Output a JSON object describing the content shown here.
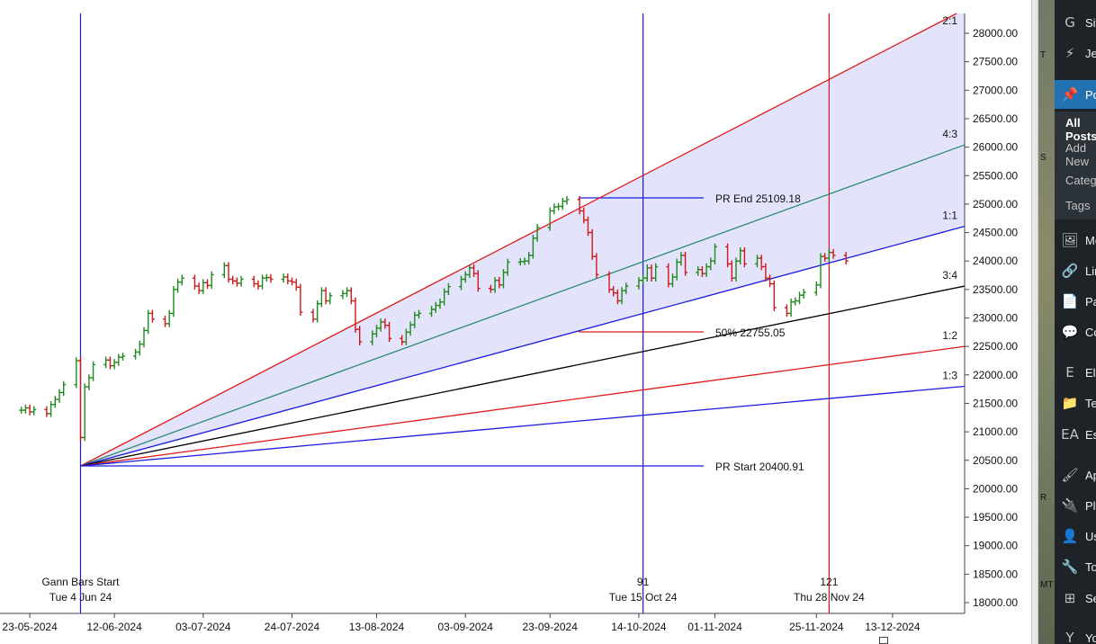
{
  "chart_data": {
    "type": "ohlc-gann-chart",
    "date_axis": {
      "ticks": [
        "23-05-2024",
        "12-06-2024",
        "03-07-2024",
        "24-07-2024",
        "13-08-2024",
        "03-09-2024",
        "23-09-2024",
        "14-10-2024",
        "01-11-2024",
        "25-11-2024",
        "13-12-2024"
      ]
    },
    "price_axis": {
      "ylim": [
        17900,
        28350
      ],
      "ticks": [
        "28000.00",
        "27500.00",
        "27000.00",
        "26500.00",
        "26000.00",
        "25500.00",
        "25000.00",
        "24500.00",
        "24000.00",
        "23500.00",
        "23000.00",
        "22500.00",
        "22000.00",
        "21500.00",
        "21000.00",
        "20500.00",
        "20000.00",
        "19500.00",
        "19000.00",
        "18500.00",
        "18000.00"
      ]
    },
    "gann_fan": {
      "origin_date": "2024-06-04",
      "origin_price": 20400.91,
      "lines": [
        {
          "label": "2:1",
          "color": "#e01818",
          "end_price": 28420
        },
        {
          "label": "4:3",
          "color": "#2e8b6e",
          "end_price": 26040
        },
        {
          "label": "1:1",
          "color": "#1a1ae0",
          "end_price": 24610
        },
        {
          "label": "3:4",
          "color": "#000000",
          "end_price": 23560
        },
        {
          "label": "1:2",
          "color": "#e01818",
          "end_price": 22500
        },
        {
          "label": "1:3",
          "color": "#1a1ae0",
          "end_price": 21800
        }
      ]
    },
    "price_range": {
      "end_label": "PR End 25109.18",
      "start_label": "PR Start 20400.91",
      "mid_label": "50% 22755.05",
      "end_value": 25109.18,
      "start_value": 20400.91,
      "mid_value": 22755.05
    },
    "vertical_markers": [
      {
        "date": "2024-06-04",
        "color": "#1a1ae0",
        "label_top": "Gann Bars Start",
        "label_bottom": "Tue 4 Jun 24"
      },
      {
        "date": "2024-10-15",
        "color": "#1a1ae0",
        "label_top": "91",
        "label_bottom": "Tue 15 Oct 24"
      },
      {
        "date": "2024-11-28",
        "color": "#e01818",
        "label_top": "121",
        "label_bottom": "Thu 28 Nov 24"
      }
    ],
    "up_color": "#1f8a1f",
    "down_color": "#d01818",
    "series": [
      {
        "date": "2024-05-21",
        "close": 21380
      },
      {
        "date": "2024-05-22",
        "close": 21420
      },
      {
        "date": "2024-05-23",
        "close": 21350
      },
      {
        "date": "2024-05-24",
        "close": 21390
      },
      {
        "date": "2024-05-27",
        "close": 21320
      },
      {
        "date": "2024-05-28",
        "close": 21480
      },
      {
        "date": "2024-05-29",
        "close": 21570
      },
      {
        "date": "2024-05-30",
        "close": 21690
      },
      {
        "date": "2024-05-31",
        "close": 21830
      },
      {
        "date": "2024-06-03",
        "close": 22250
      },
      {
        "date": "2024-06-04",
        "close": 20900
      },
      {
        "date": "2024-06-05",
        "close": 21790
      },
      {
        "date": "2024-06-06",
        "close": 21950
      },
      {
        "date": "2024-06-07",
        "close": 22180
      },
      {
        "date": "2024-06-10",
        "close": 22260
      },
      {
        "date": "2024-06-11",
        "close": 22160
      },
      {
        "date": "2024-06-12",
        "close": 22220
      },
      {
        "date": "2024-06-13",
        "close": 22310
      },
      {
        "date": "2024-06-14",
        "close": 22330
      },
      {
        "date": "2024-06-17",
        "close": 22400
      },
      {
        "date": "2024-06-18",
        "close": 22540
      },
      {
        "date": "2024-06-19",
        "close": 22780
      },
      {
        "date": "2024-06-20",
        "close": 23080
      },
      {
        "date": "2024-06-21",
        "close": 22980
      },
      {
        "date": "2024-06-24",
        "close": 22900
      },
      {
        "date": "2024-06-25",
        "close": 23080
      },
      {
        "date": "2024-06-26",
        "close": 23500
      },
      {
        "date": "2024-06-27",
        "close": 23630
      },
      {
        "date": "2024-06-28",
        "close": 23700
      },
      {
        "date": "2024-07-01",
        "close": 23560
      },
      {
        "date": "2024-07-02",
        "close": 23480
      },
      {
        "date": "2024-07-03",
        "close": 23620
      },
      {
        "date": "2024-07-04",
        "close": 23570
      },
      {
        "date": "2024-07-05",
        "close": 23760
      },
      {
        "date": "2024-07-08",
        "close": 23920
      },
      {
        "date": "2024-07-09",
        "close": 23680
      },
      {
        "date": "2024-07-10",
        "close": 23650
      },
      {
        "date": "2024-07-11",
        "close": 23610
      },
      {
        "date": "2024-07-12",
        "close": 23680
      },
      {
        "date": "2024-07-15",
        "close": 23600
      },
      {
        "date": "2024-07-16",
        "close": 23560
      },
      {
        "date": "2024-07-17",
        "close": 23700
      },
      {
        "date": "2024-07-18",
        "close": 23710
      },
      {
        "date": "2024-07-19",
        "close": 23680
      },
      {
        "date": "2024-07-22",
        "close": 23720
      },
      {
        "date": "2024-07-23",
        "close": 23650
      },
      {
        "date": "2024-07-24",
        "close": 23630
      },
      {
        "date": "2024-07-25",
        "close": 23540
      },
      {
        "date": "2024-07-26",
        "close": 23100
      },
      {
        "date": "2024-07-29",
        "close": 22980
      },
      {
        "date": "2024-07-30",
        "close": 23250
      },
      {
        "date": "2024-07-31",
        "close": 23480
      },
      {
        "date": "2024-08-01",
        "close": 23300
      },
      {
        "date": "2024-08-02",
        "close": 23390
      },
      {
        "date": "2024-08-05",
        "close": 23430
      },
      {
        "date": "2024-08-06",
        "close": 23480
      },
      {
        "date": "2024-08-07",
        "close": 23300
      },
      {
        "date": "2024-08-08",
        "close": 22800
      },
      {
        "date": "2024-08-09",
        "close": 22580
      },
      {
        "date": "2024-08-12",
        "close": 22720
      },
      {
        "date": "2024-08-13",
        "close": 22820
      },
      {
        "date": "2024-08-14",
        "close": 22930
      },
      {
        "date": "2024-08-15",
        "close": 22870
      },
      {
        "date": "2024-08-16",
        "close": 22640
      },
      {
        "date": "2024-08-19",
        "close": 22580
      },
      {
        "date": "2024-08-20",
        "close": 22750
      },
      {
        "date": "2024-08-21",
        "close": 22880
      },
      {
        "date": "2024-08-22",
        "close": 23050
      },
      {
        "date": "2024-08-23",
        "close": 23080
      },
      {
        "date": "2024-08-26",
        "close": 23150
      },
      {
        "date": "2024-08-27",
        "close": 23220
      },
      {
        "date": "2024-08-28",
        "close": 23280
      },
      {
        "date": "2024-08-29",
        "close": 23460
      },
      {
        "date": "2024-08-30",
        "close": 23550
      },
      {
        "date": "2024-09-02",
        "close": 23680
      },
      {
        "date": "2024-09-03",
        "close": 23760
      },
      {
        "date": "2024-09-04",
        "close": 23880
      },
      {
        "date": "2024-09-05",
        "close": 23780
      },
      {
        "date": "2024-09-06",
        "close": 23520
      },
      {
        "date": "2024-09-09",
        "close": 23500
      },
      {
        "date": "2024-09-10",
        "close": 23660
      },
      {
        "date": "2024-09-11",
        "close": 23580
      },
      {
        "date": "2024-09-12",
        "close": 23800
      },
      {
        "date": "2024-09-13",
        "close": 23980
      },
      {
        "date": "2024-09-16",
        "close": 23990
      },
      {
        "date": "2024-09-17",
        "close": 24000
      },
      {
        "date": "2024-09-18",
        "close": 24100
      },
      {
        "date": "2024-09-19",
        "close": 24400
      },
      {
        "date": "2024-09-20",
        "close": 24590
      },
      {
        "date": "2024-09-23",
        "close": 24880
      },
      {
        "date": "2024-09-24",
        "close": 24950
      },
      {
        "date": "2024-09-25",
        "close": 24960
      },
      {
        "date": "2024-09-26",
        "close": 25050
      },
      {
        "date": "2024-09-27",
        "close": 25080
      },
      {
        "date": "2024-09-30",
        "close": 24880
      },
      {
        "date": "2024-10-01",
        "close": 24720
      },
      {
        "date": "2024-10-02",
        "close": 24500
      },
      {
        "date": "2024-10-03",
        "close": 24080
      },
      {
        "date": "2024-10-04",
        "close": 23760
      },
      {
        "date": "2024-10-07",
        "close": 23500
      },
      {
        "date": "2024-10-08",
        "close": 23440
      },
      {
        "date": "2024-10-09",
        "close": 23300
      },
      {
        "date": "2024-10-10",
        "close": 23480
      },
      {
        "date": "2024-10-11",
        "close": 23560
      },
      {
        "date": "2024-10-14",
        "close": 23660
      },
      {
        "date": "2024-10-15",
        "close": 23700
      },
      {
        "date": "2024-10-16",
        "close": 23880
      },
      {
        "date": "2024-10-17",
        "close": 23700
      },
      {
        "date": "2024-10-18",
        "close": 23900
      },
      {
        "date": "2024-10-21",
        "close": 23600
      },
      {
        "date": "2024-10-22",
        "close": 23720
      },
      {
        "date": "2024-10-23",
        "close": 23980
      },
      {
        "date": "2024-10-24",
        "close": 24100
      },
      {
        "date": "2024-10-25",
        "close": 23800
      },
      {
        "date": "2024-10-28",
        "close": 23850
      },
      {
        "date": "2024-10-29",
        "close": 23780
      },
      {
        "date": "2024-10-30",
        "close": 23900
      },
      {
        "date": "2024-10-31",
        "close": 24000
      },
      {
        "date": "2024-11-01",
        "close": 24250
      },
      {
        "date": "2024-11-04",
        "close": 23950
      },
      {
        "date": "2024-11-05",
        "close": 23700
      },
      {
        "date": "2024-11-06",
        "close": 24000
      },
      {
        "date": "2024-11-07",
        "close": 24180
      },
      {
        "date": "2024-11-08",
        "close": 23950
      },
      {
        "date": "2024-11-11",
        "close": 24050
      },
      {
        "date": "2024-11-12",
        "close": 23900
      },
      {
        "date": "2024-11-13",
        "close": 23700
      },
      {
        "date": "2024-11-14",
        "close": 23600
      },
      {
        "date": "2024-11-15",
        "close": 23180
      },
      {
        "date": "2024-11-18",
        "close": 23080
      },
      {
        "date": "2024-11-19",
        "close": 23280
      },
      {
        "date": "2024-11-20",
        "close": 23300
      },
      {
        "date": "2024-11-21",
        "close": 23400
      },
      {
        "date": "2024-11-22",
        "close": 23450
      },
      {
        "date": "2024-11-25",
        "close": 23580
      },
      {
        "date": "2024-11-26",
        "close": 24080
      },
      {
        "date": "2024-11-27",
        "close": 24050
      },
      {
        "date": "2024-11-28",
        "close": 24150
      },
      {
        "date": "2024-11-29",
        "close": 24100
      },
      {
        "date": "2024-12-02",
        "close": 24000
      }
    ]
  },
  "wp_strip_tags": [
    "T",
    "S",
    "R",
    "MT"
  ],
  "wp_admin_menu": {
    "items": [
      {
        "icon": "G",
        "label": "Site",
        "name": "sitekit"
      },
      {
        "icon": "⚡",
        "label": "Jetpack",
        "name": "jetpack"
      },
      {
        "icon": "📌",
        "label": "Posts",
        "name": "posts",
        "active": true
      },
      {
        "icon": "🖼",
        "label": "Media",
        "name": "media"
      },
      {
        "icon": "🔗",
        "label": "Links",
        "name": "links"
      },
      {
        "icon": "📄",
        "label": "Pages",
        "name": "pages"
      },
      {
        "icon": "💬",
        "label": "Comments",
        "name": "comments"
      },
      {
        "icon": "E",
        "label": "Elementor",
        "name": "elementor"
      },
      {
        "icon": "📁",
        "label": "Templates",
        "name": "templates"
      },
      {
        "icon": "EA",
        "label": "Essential Addons",
        "name": "essential-addons"
      },
      {
        "icon": "🖌",
        "label": "Appearance",
        "name": "appearance"
      },
      {
        "icon": "🔌",
        "label": "Plugins",
        "name": "plugins"
      },
      {
        "icon": "👤",
        "label": "Users",
        "name": "users"
      },
      {
        "icon": "🔧",
        "label": "Tools",
        "name": "tools"
      },
      {
        "icon": "⊞",
        "label": "Settings",
        "name": "settings"
      },
      {
        "icon": "Y",
        "label": "Yoast SEO",
        "name": "yoast"
      }
    ],
    "submenu": [
      "All Posts",
      "Add New",
      "Categories",
      "Tags"
    ]
  }
}
